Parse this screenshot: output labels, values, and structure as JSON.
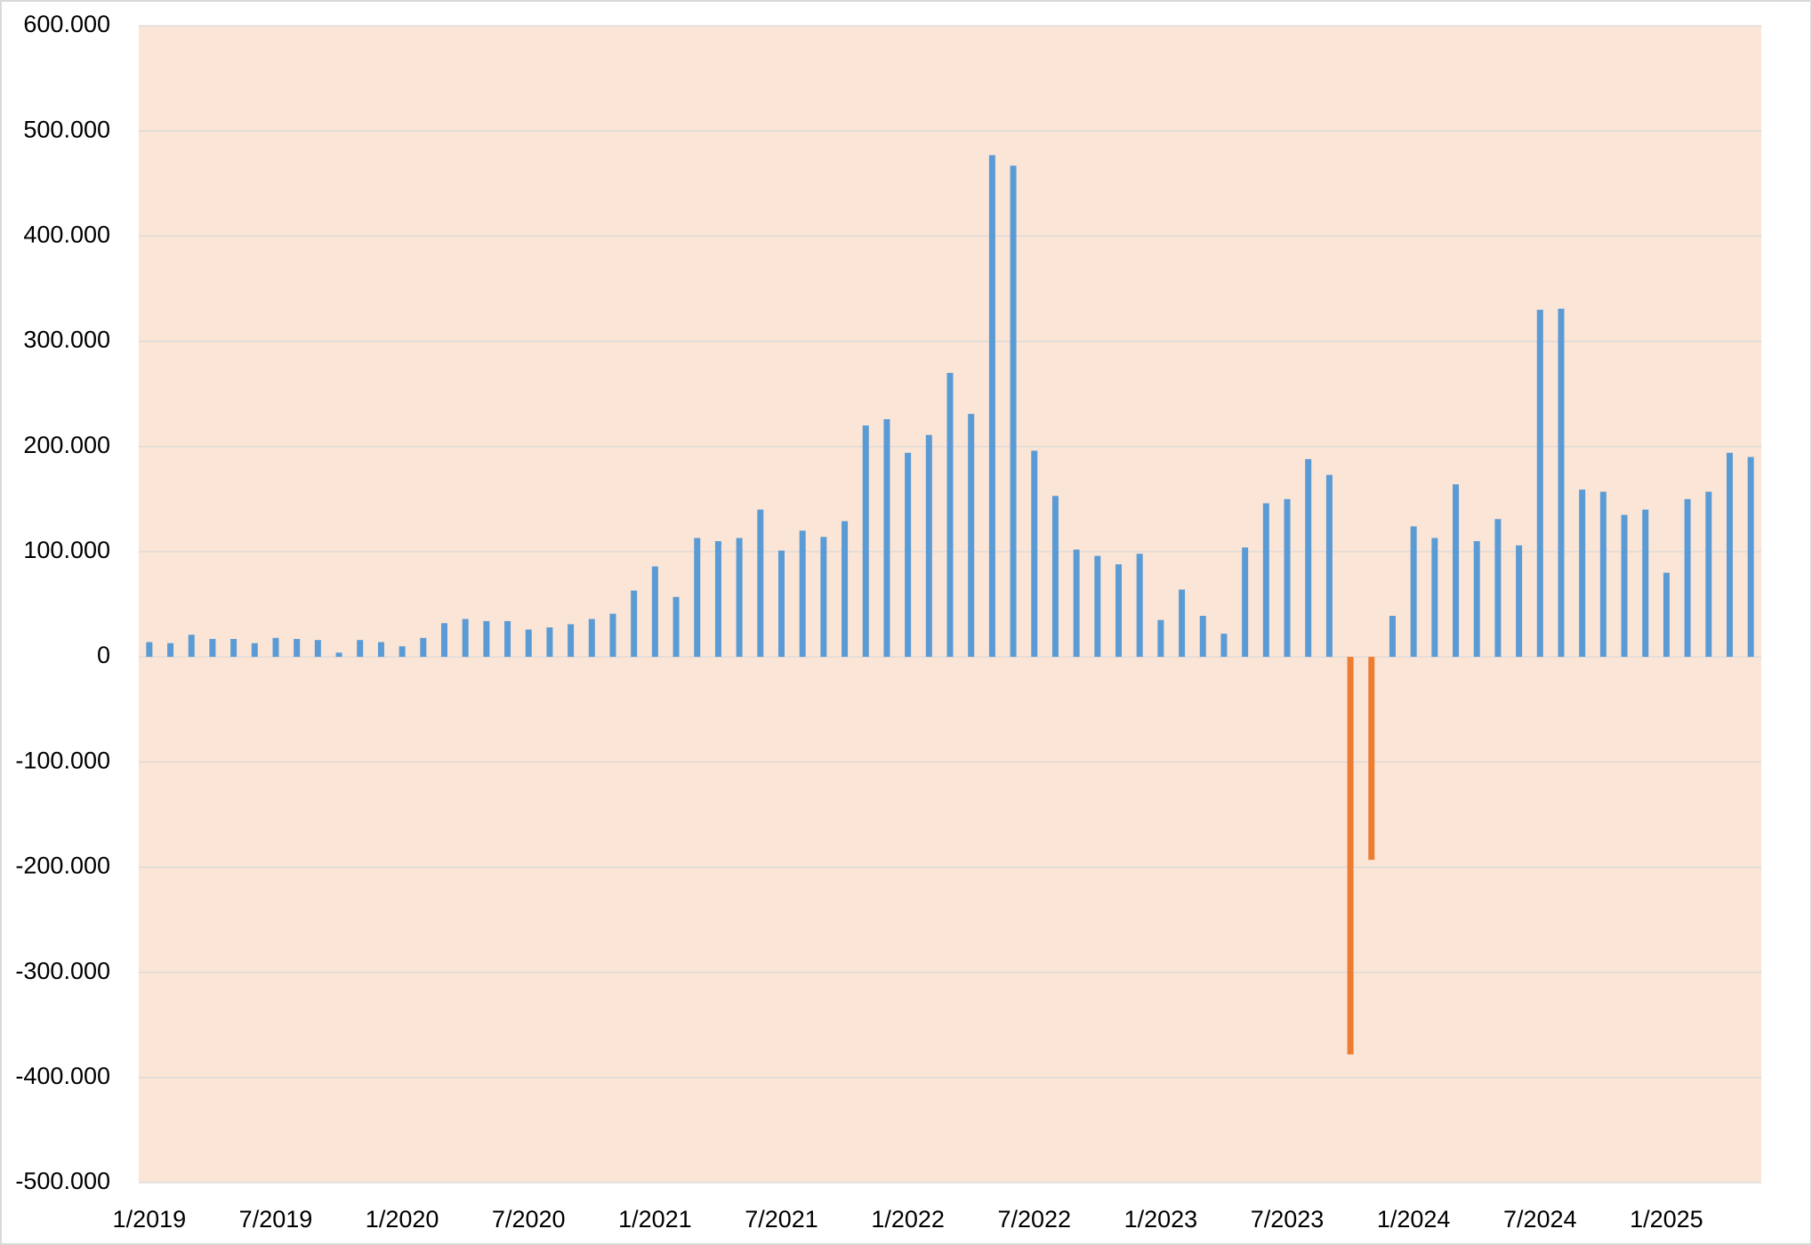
{
  "chart_data": {
    "type": "bar",
    "categories": [
      "1/2019",
      null,
      null,
      null,
      null,
      null,
      "7/2019",
      null,
      null,
      null,
      null,
      null,
      "1/2020",
      null,
      null,
      null,
      null,
      null,
      "7/2020",
      null,
      null,
      null,
      null,
      null,
      "1/2021",
      null,
      null,
      null,
      null,
      null,
      "7/2021",
      null,
      null,
      null,
      null,
      null,
      "1/2022",
      null,
      null,
      null,
      null,
      null,
      "7/2022",
      null,
      null,
      null,
      null,
      null,
      "1/2023",
      null,
      null,
      null,
      null,
      null,
      "7/2023",
      null,
      null,
      null,
      null,
      null,
      "1/2024",
      null,
      null,
      null,
      null,
      null,
      "7/2024",
      null,
      null,
      null,
      null,
      null,
      "1/2025",
      null,
      null,
      null,
      null
    ],
    "values": [
      14000,
      13000,
      21000,
      17000,
      17000,
      13000,
      18000,
      17000,
      16000,
      4000,
      16000,
      14000,
      10000,
      18000,
      32000,
      36000,
      34000,
      34000,
      26000,
      28000,
      31000,
      36000,
      41000,
      63000,
      86000,
      57000,
      113000,
      110000,
      113000,
      140000,
      101000,
      120000,
      114000,
      129000,
      220000,
      226000,
      194000,
      211000,
      270000,
      231000,
      477000,
      467000,
      196000,
      153000,
      102000,
      96000,
      88000,
      98000,
      35000,
      64000,
      39000,
      22000,
      104000,
      146000,
      150000,
      188000,
      173000,
      -378000,
      -193000,
      39000,
      124000,
      113000,
      164000,
      110000,
      131000,
      106000,
      330000,
      331000,
      159000,
      157000,
      135000,
      140000,
      80000,
      150000,
      157000,
      194000,
      190000
    ],
    "color": "#5b9bd5",
    "negative_color": "#ed7d31",
    "ylim": [
      -500000,
      600000
    ],
    "yticks": [
      {
        "value": -500000,
        "label": "-500.000"
      },
      {
        "value": -400000,
        "label": "-400.000"
      },
      {
        "value": -300000,
        "label": "-300.000"
      },
      {
        "value": -200000,
        "label": "-200.000"
      },
      {
        "value": -100000,
        "label": "-100.000"
      },
      0,
      {
        "value": 100000,
        "label": "100.000"
      },
      {
        "value": 200000,
        "label": "200.000"
      },
      {
        "value": 300000,
        "label": "300.000"
      },
      {
        "value": 400000,
        "label": "400.000"
      },
      {
        "value": 500000,
        "label": "500.000"
      },
      {
        "value": 600000,
        "label": "600.000"
      }
    ],
    "grid": true,
    "plot_background": "#fbe5d6"
  }
}
